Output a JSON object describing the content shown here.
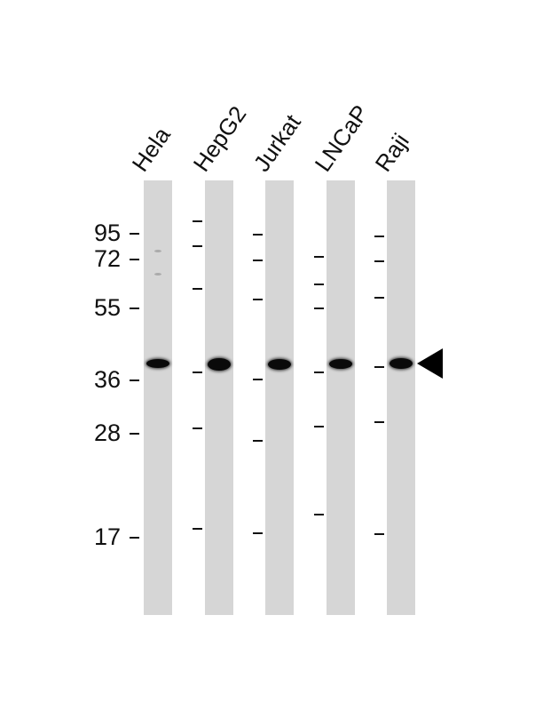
{
  "lanes": [
    {
      "label": "Hela"
    },
    {
      "label": "HepG2"
    },
    {
      "label": "Jurkat"
    },
    {
      "label": "LNCaP"
    },
    {
      "label": "Raji"
    }
  ],
  "molecular_weight_markers": [
    "95",
    "72",
    "55",
    "36",
    "28",
    "17"
  ],
  "band_color": "#0a0a0a",
  "lane_background": "#d6d6d6",
  "target_band_indicator": "arrowhead-left"
}
